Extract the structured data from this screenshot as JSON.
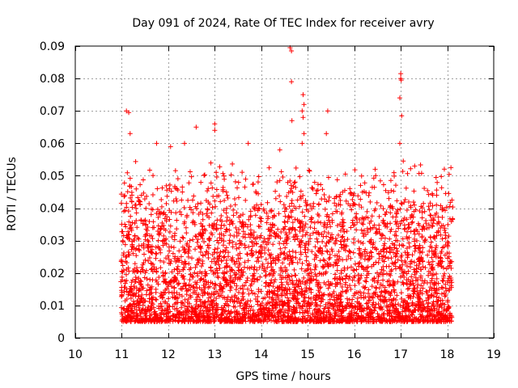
{
  "chart_data": {
    "type": "scatter",
    "title": "Day 091 of 2024, Rate Of TEC Index for receiver avry",
    "xlabel": "GPS time / hours",
    "ylabel": "ROTI / TECUs",
    "xlim": [
      10,
      19
    ],
    "ylim": [
      0,
      0.09
    ],
    "xticks": [
      "10",
      "11",
      "12",
      "13",
      "14",
      "15",
      "16",
      "17",
      "18",
      "19"
    ],
    "yticks": [
      "0",
      "0.01",
      "0.02",
      "0.03",
      "0.04",
      "0.05",
      "0.06",
      "0.07",
      "0.08",
      "0.09"
    ],
    "grid": true,
    "marker": "plus",
    "series": [
      {
        "name": "ROTI",
        "color": "#ff0000",
        "x_range": [
          10.98,
          18.12
        ],
        "n_points": 4000,
        "typical_range": [
          0.005,
          0.045
        ],
        "notable_points": [
          {
            "x": 11.1,
            "y": 0.07
          },
          {
            "x": 11.15,
            "y": 0.0695
          },
          {
            "x": 11.18,
            "y": 0.063
          },
          {
            "x": 11.75,
            "y": 0.06
          },
          {
            "x": 12.05,
            "y": 0.059
          },
          {
            "x": 12.35,
            "y": 0.06
          },
          {
            "x": 12.6,
            "y": 0.065
          },
          {
            "x": 13.0,
            "y": 0.066
          },
          {
            "x": 13.0,
            "y": 0.064
          },
          {
            "x": 13.72,
            "y": 0.06
          },
          {
            "x": 14.4,
            "y": 0.058
          },
          {
            "x": 14.62,
            "y": 0.0895
          },
          {
            "x": 14.65,
            "y": 0.0885
          },
          {
            "x": 14.65,
            "y": 0.079
          },
          {
            "x": 14.66,
            "y": 0.067
          },
          {
            "x": 14.9,
            "y": 0.075
          },
          {
            "x": 14.92,
            "y": 0.072
          },
          {
            "x": 14.88,
            "y": 0.07
          },
          {
            "x": 14.9,
            "y": 0.068
          },
          {
            "x": 14.92,
            "y": 0.063
          },
          {
            "x": 14.88,
            "y": 0.06
          },
          {
            "x": 15.43,
            "y": 0.07
          },
          {
            "x": 15.4,
            "y": 0.063
          },
          {
            "x": 16.45,
            "y": 0.052
          },
          {
            "x": 17.0,
            "y": 0.0815
          },
          {
            "x": 17.0,
            "y": 0.08
          },
          {
            "x": 17.01,
            "y": 0.0795
          },
          {
            "x": 16.98,
            "y": 0.074
          },
          {
            "x": 17.02,
            "y": 0.0685
          },
          {
            "x": 16.98,
            "y": 0.06
          },
          {
            "x": 17.3,
            "y": 0.053
          },
          {
            "x": 18.08,
            "y": 0.0525
          }
        ]
      }
    ]
  }
}
